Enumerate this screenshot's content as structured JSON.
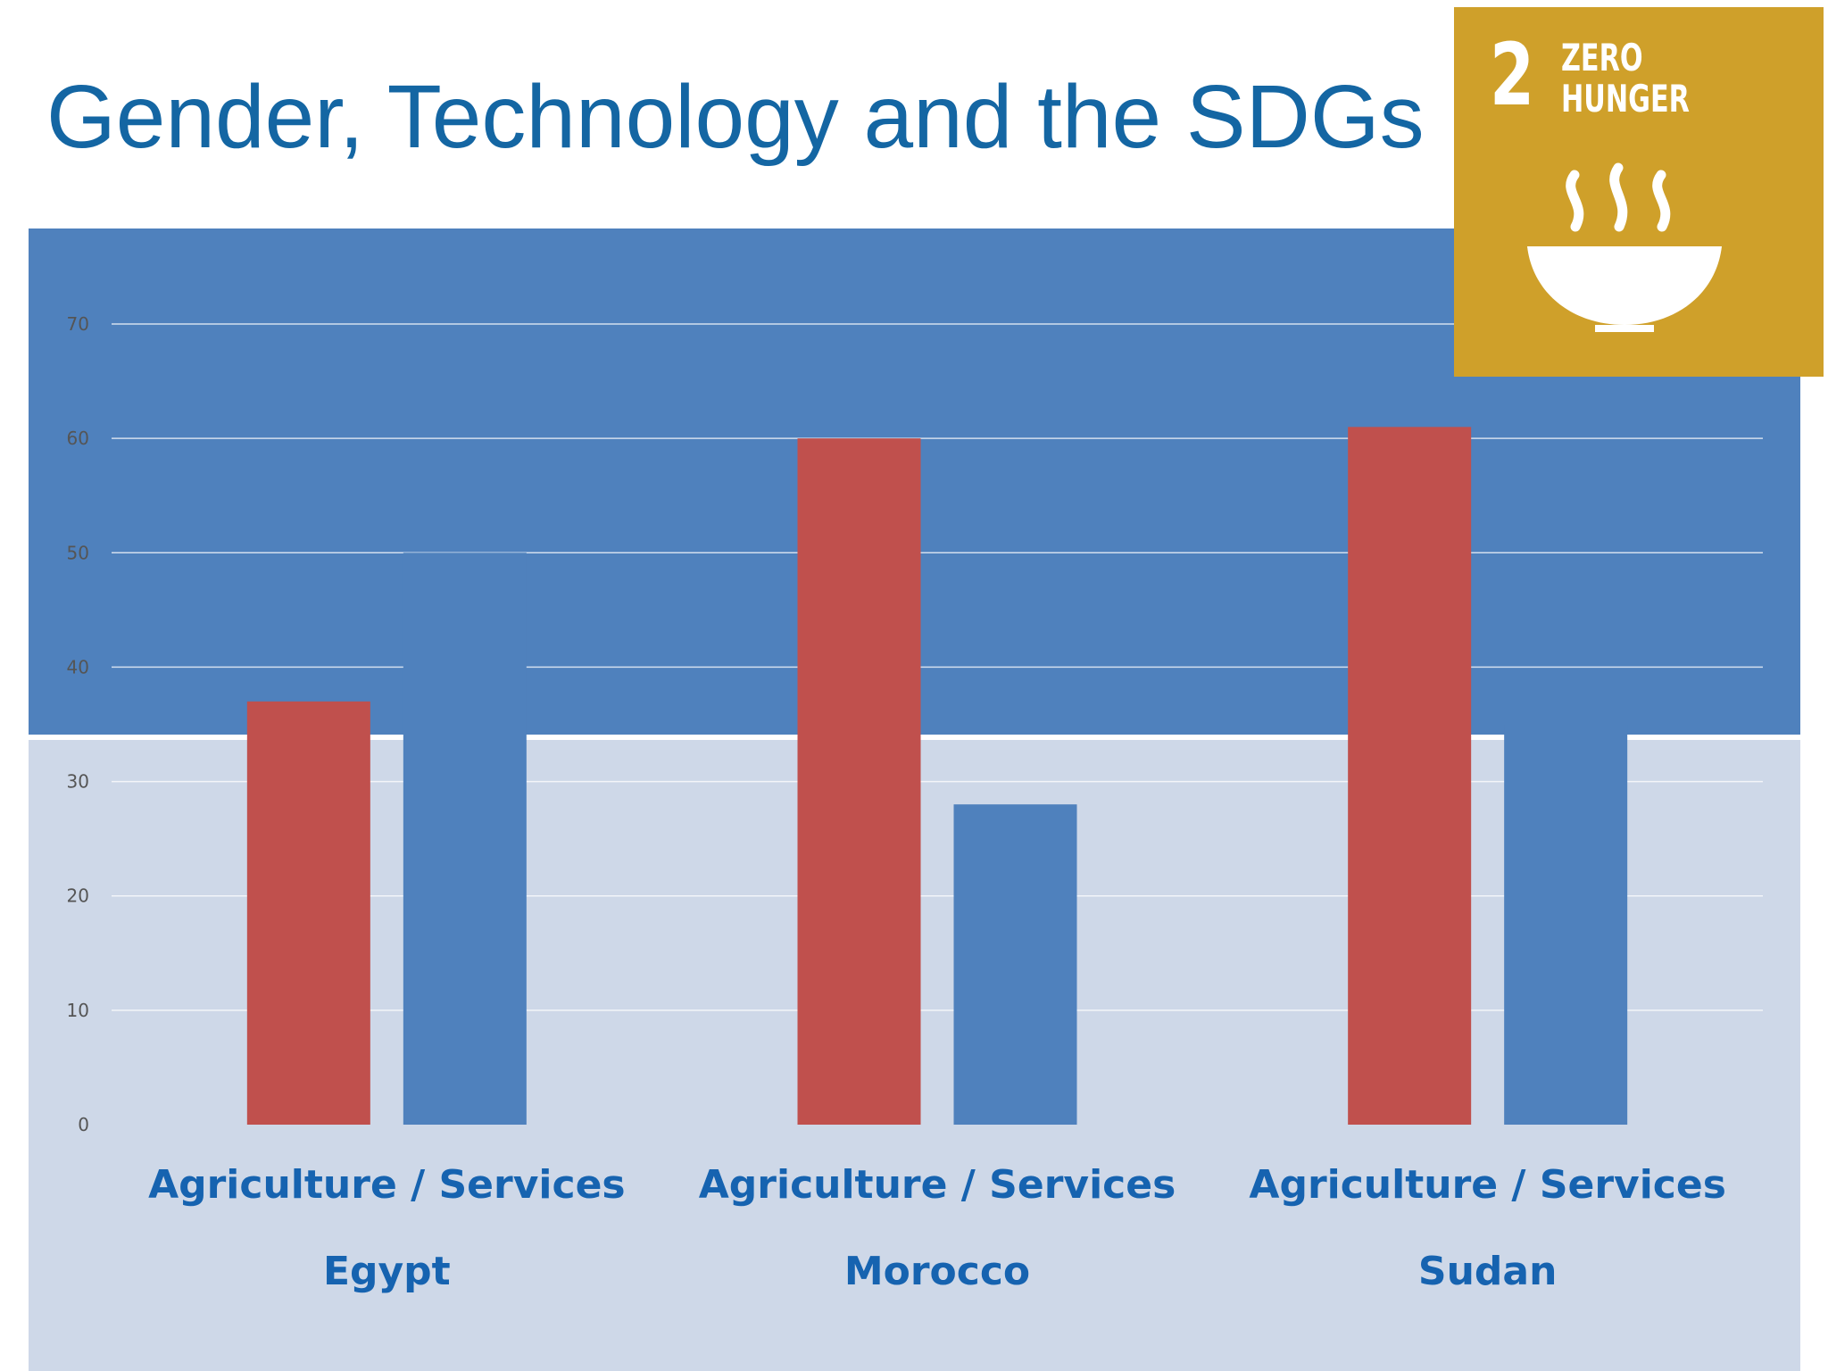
{
  "slide": {
    "title": "Gender, Technology and the SDGs"
  },
  "sdg_badge": {
    "number": "2",
    "line1": "ZERO",
    "line2": "HUNGER",
    "icon": "steaming-bowl-icon",
    "color": "#cfa02a"
  },
  "colors": {
    "title": "#1466a3",
    "bar_red": "#c0504d",
    "bar_blue": "#4f81bd",
    "category_text": "#1663b0",
    "band_light": "#ced8e8"
  },
  "chart_data": {
    "type": "bar",
    "title": "",
    "xlabel": "",
    "ylabel": "",
    "categories": [
      "Egypt",
      "Morocco",
      "Sudan"
    ],
    "category_sublabels": [
      "Agriculture / Services",
      "Agriculture / Services",
      "Agriculture / Services"
    ],
    "series": [
      {
        "values": [
          37,
          60,
          61
        ],
        "color": "#c0504d"
      },
      {
        "values": [
          50,
          28,
          35
        ],
        "color": "#4f81bd"
      }
    ],
    "ylim": [
      0,
      70
    ],
    "yticks": [
      0,
      10,
      20,
      30,
      40,
      50,
      60,
      70
    ],
    "grid": true,
    "legend": "none"
  }
}
